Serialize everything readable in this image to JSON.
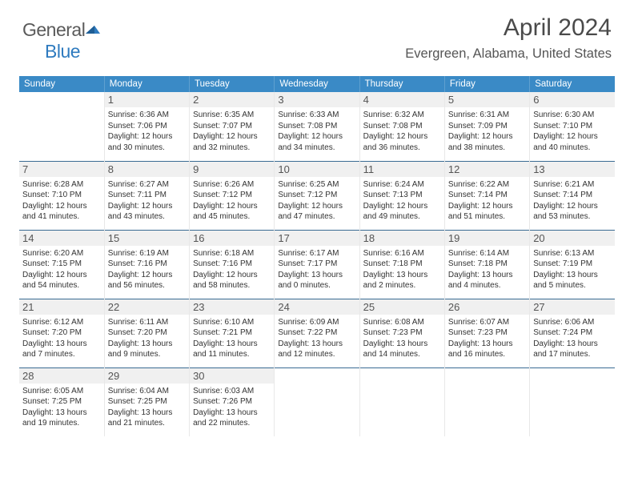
{
  "logo": {
    "text1": "General",
    "text2": "Blue",
    "accent_color": "#2f7bbf",
    "gray": "#5a5a5a"
  },
  "title": {
    "month": "April 2024",
    "location": "Evergreen, Alabama, United States"
  },
  "colors": {
    "header_bg": "#3a8ac6",
    "row_sep": "#3a6b93",
    "daybg": "#f0f0f0"
  },
  "day_names": [
    "Sunday",
    "Monday",
    "Tuesday",
    "Wednesday",
    "Thursday",
    "Friday",
    "Saturday"
  ],
  "weeks": [
    [
      null,
      {
        "n": "1",
        "sr": "6:36 AM",
        "ss": "7:06 PM",
        "dl": "12 hours and 30 minutes."
      },
      {
        "n": "2",
        "sr": "6:35 AM",
        "ss": "7:07 PM",
        "dl": "12 hours and 32 minutes."
      },
      {
        "n": "3",
        "sr": "6:33 AM",
        "ss": "7:08 PM",
        "dl": "12 hours and 34 minutes."
      },
      {
        "n": "4",
        "sr": "6:32 AM",
        "ss": "7:08 PM",
        "dl": "12 hours and 36 minutes."
      },
      {
        "n": "5",
        "sr": "6:31 AM",
        "ss": "7:09 PM",
        "dl": "12 hours and 38 minutes."
      },
      {
        "n": "6",
        "sr": "6:30 AM",
        "ss": "7:10 PM",
        "dl": "12 hours and 40 minutes."
      }
    ],
    [
      {
        "n": "7",
        "sr": "6:28 AM",
        "ss": "7:10 PM",
        "dl": "12 hours and 41 minutes."
      },
      {
        "n": "8",
        "sr": "6:27 AM",
        "ss": "7:11 PM",
        "dl": "12 hours and 43 minutes."
      },
      {
        "n": "9",
        "sr": "6:26 AM",
        "ss": "7:12 PM",
        "dl": "12 hours and 45 minutes."
      },
      {
        "n": "10",
        "sr": "6:25 AM",
        "ss": "7:12 PM",
        "dl": "12 hours and 47 minutes."
      },
      {
        "n": "11",
        "sr": "6:24 AM",
        "ss": "7:13 PM",
        "dl": "12 hours and 49 minutes."
      },
      {
        "n": "12",
        "sr": "6:22 AM",
        "ss": "7:14 PM",
        "dl": "12 hours and 51 minutes."
      },
      {
        "n": "13",
        "sr": "6:21 AM",
        "ss": "7:14 PM",
        "dl": "12 hours and 53 minutes."
      }
    ],
    [
      {
        "n": "14",
        "sr": "6:20 AM",
        "ss": "7:15 PM",
        "dl": "12 hours and 54 minutes."
      },
      {
        "n": "15",
        "sr": "6:19 AM",
        "ss": "7:16 PM",
        "dl": "12 hours and 56 minutes."
      },
      {
        "n": "16",
        "sr": "6:18 AM",
        "ss": "7:16 PM",
        "dl": "12 hours and 58 minutes."
      },
      {
        "n": "17",
        "sr": "6:17 AM",
        "ss": "7:17 PM",
        "dl": "13 hours and 0 minutes."
      },
      {
        "n": "18",
        "sr": "6:16 AM",
        "ss": "7:18 PM",
        "dl": "13 hours and 2 minutes."
      },
      {
        "n": "19",
        "sr": "6:14 AM",
        "ss": "7:18 PM",
        "dl": "13 hours and 4 minutes."
      },
      {
        "n": "20",
        "sr": "6:13 AM",
        "ss": "7:19 PM",
        "dl": "13 hours and 5 minutes."
      }
    ],
    [
      {
        "n": "21",
        "sr": "6:12 AM",
        "ss": "7:20 PM",
        "dl": "13 hours and 7 minutes."
      },
      {
        "n": "22",
        "sr": "6:11 AM",
        "ss": "7:20 PM",
        "dl": "13 hours and 9 minutes."
      },
      {
        "n": "23",
        "sr": "6:10 AM",
        "ss": "7:21 PM",
        "dl": "13 hours and 11 minutes."
      },
      {
        "n": "24",
        "sr": "6:09 AM",
        "ss": "7:22 PM",
        "dl": "13 hours and 12 minutes."
      },
      {
        "n": "25",
        "sr": "6:08 AM",
        "ss": "7:23 PM",
        "dl": "13 hours and 14 minutes."
      },
      {
        "n": "26",
        "sr": "6:07 AM",
        "ss": "7:23 PM",
        "dl": "13 hours and 16 minutes."
      },
      {
        "n": "27",
        "sr": "6:06 AM",
        "ss": "7:24 PM",
        "dl": "13 hours and 17 minutes."
      }
    ],
    [
      {
        "n": "28",
        "sr": "6:05 AM",
        "ss": "7:25 PM",
        "dl": "13 hours and 19 minutes."
      },
      {
        "n": "29",
        "sr": "6:04 AM",
        "ss": "7:25 PM",
        "dl": "13 hours and 21 minutes."
      },
      {
        "n": "30",
        "sr": "6:03 AM",
        "ss": "7:26 PM",
        "dl": "13 hours and 22 minutes."
      },
      null,
      null,
      null,
      null
    ]
  ],
  "labels": {
    "sunrise": "Sunrise:",
    "sunset": "Sunset:",
    "daylight": "Daylight:"
  }
}
